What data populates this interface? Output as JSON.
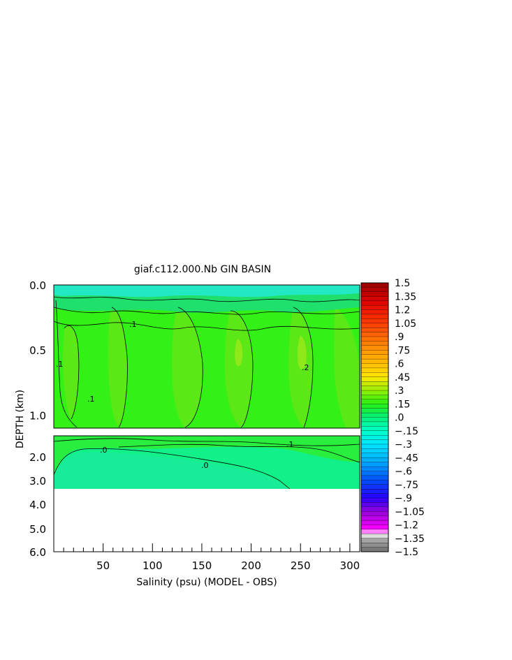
{
  "chart_data": {
    "type": "heatmap",
    "title": "giaf.c112.000.Nb GIN BASIN",
    "xlabel": "Salinity (psu) (MODEL - OBS)",
    "ylabel": "DEPTH (km)",
    "x_range": [
      0,
      310
    ],
    "x_ticks": [
      "50",
      "100",
      "150",
      "200",
      "250",
      "300"
    ],
    "upper_panel": {
      "depth_range_km": [
        0.0,
        1.1
      ],
      "y_ticks": [
        "0.0",
        "0.5",
        "1.0"
      ]
    },
    "lower_panel": {
      "depth_range_km": [
        1.1,
        6.0
      ],
      "y_ticks": [
        "2.0",
        "3.0",
        "4.0",
        "5.0",
        "6.0"
      ],
      "filled_to_depth_km": 3.3
    },
    "contour_labels": [
      ".1",
      ".1",
      ".1",
      ".2",
      ".1",
      ".0",
      ".0"
    ],
    "colorbar": {
      "min": -1.5,
      "max": 1.5,
      "step": 0.05,
      "labels": [
        "1.5",
        "1.35",
        "1.2",
        "1.05",
        ".9",
        ".75",
        ".6",
        ".45",
        ".3",
        ".15",
        ".0",
        "−.15",
        "−.3",
        "−.45",
        "−.6",
        "−.75",
        "−.9",
        "−1.05",
        "−1.2",
        "−1.35",
        "−1.5"
      ]
    },
    "grid": false,
    "legend": "right colorbar"
  }
}
